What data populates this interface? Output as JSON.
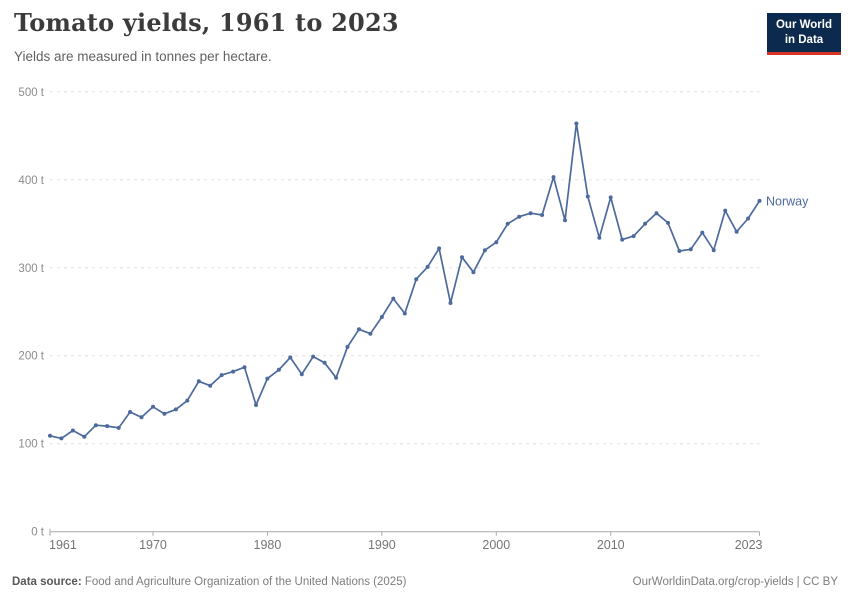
{
  "header": {
    "title": "Tomato yields, 1961 to 2023",
    "subtitle": "Yields are measured in tonnes per hectare.",
    "logo": {
      "line1": "Our World",
      "line2": "in Data"
    }
  },
  "footer": {
    "source_label": "Data source:",
    "source_text": " Food and Agriculture Organization of the United Nations (2025)",
    "credit": "OurWorldinData.org/crop-yields | CC BY"
  },
  "colors": {
    "series": "#4c6a9c",
    "logo_bg": "#0b2a4e",
    "logo_accent": "#d8352a",
    "gridline": "#e0e0e0",
    "axis": "#a9a9a9"
  },
  "chart_data": {
    "type": "line",
    "title": "Tomato yields, 1961 to 2023",
    "subtitle": "Yields are measured in tonnes per hectare.",
    "unit": "tonnes per hectare",
    "xlabel": "",
    "ylabel": "",
    "xlim": [
      1961,
      2023
    ],
    "ylim": [
      0,
      500
    ],
    "x_ticks": [
      1961,
      1970,
      1980,
      1990,
      2000,
      2010,
      2023
    ],
    "y_ticks": [
      0,
      100,
      200,
      300,
      400,
      500
    ],
    "y_tick_suffix": " t",
    "grid": "horizontal-dashed",
    "legend_position": "end-of-line",
    "series": [
      {
        "name": "Norway",
        "color": "#4c6a9c",
        "x": [
          1961,
          1962,
          1963,
          1964,
          1965,
          1966,
          1967,
          1968,
          1969,
          1970,
          1971,
          1972,
          1973,
          1974,
          1975,
          1976,
          1977,
          1978,
          1979,
          1980,
          1981,
          1982,
          1983,
          1984,
          1985,
          1986,
          1987,
          1988,
          1989,
          1990,
          1991,
          1992,
          1993,
          1994,
          1995,
          1996,
          1997,
          1998,
          1999,
          2000,
          2001,
          2002,
          2003,
          2004,
          2005,
          2006,
          2007,
          2008,
          2009,
          2010,
          2011,
          2012,
          2013,
          2014,
          2015,
          2016,
          2017,
          2018,
          2019,
          2020,
          2021,
          2022,
          2023
        ],
        "values": [
          109,
          106,
          115,
          108,
          121,
          120,
          118,
          136,
          130,
          142,
          134,
          139,
          149,
          171,
          166,
          178,
          182,
          187,
          144,
          174,
          184,
          198,
          179,
          199,
          192,
          175,
          210,
          230,
          225,
          244,
          265,
          248,
          287,
          301,
          322,
          260,
          312,
          295,
          320,
          329,
          350,
          358,
          362,
          360,
          403,
          354,
          464,
          381,
          334,
          380,
          332,
          336,
          350,
          362,
          351,
          319,
          321,
          340,
          320,
          365,
          341,
          356,
          376
        ]
      }
    ]
  }
}
